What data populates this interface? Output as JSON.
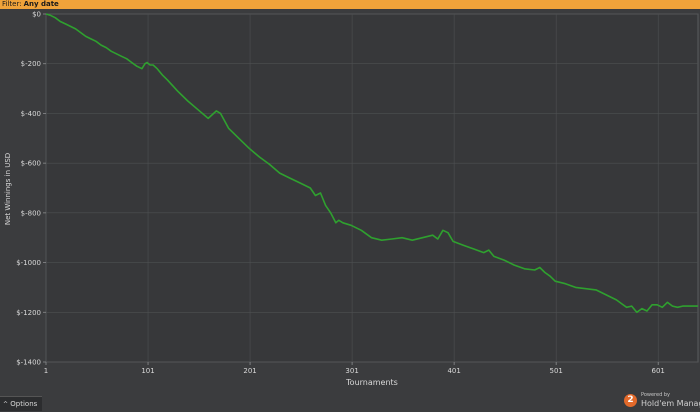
{
  "filter": {
    "label": "Filter:",
    "value": "Any date"
  },
  "footer": {
    "options_label": "Options",
    "powered_by": "Powered by",
    "brand": "Hold'em Manager",
    "badge": "2"
  },
  "colors": {
    "filter_bar": "#f0a33a",
    "background": "#3b3c3e",
    "line": "#2fa02f",
    "grid": "#4e5052",
    "axis": "#d8d8d8"
  },
  "chart_data": {
    "type": "line",
    "xlabel": "Tournaments",
    "ylabel": "Net Winnings in USD",
    "xlim": [
      1,
      640
    ],
    "ylim": [
      -1400,
      0
    ],
    "x_ticks": [
      1,
      101,
      201,
      301,
      401,
      501,
      601
    ],
    "x_tick_labels": [
      "1",
      "101",
      "201",
      "301",
      "401",
      "501",
      "601"
    ],
    "y_ticks": [
      0,
      -200,
      -400,
      -600,
      -800,
      -1000,
      -1200,
      -1400
    ],
    "y_tick_labels": [
      "$0",
      "$-200",
      "$-400",
      "$-600",
      "$-800",
      "$-1000",
      "$-1200",
      "$-1400"
    ],
    "grid": true,
    "series": [
      {
        "x": [
          1,
          5,
          10,
          15,
          20,
          25,
          30,
          35,
          40,
          45,
          50,
          55,
          60,
          65,
          70,
          75,
          80,
          85,
          90,
          95,
          98,
          100,
          103,
          106,
          110,
          115,
          120,
          130,
          140,
          150,
          160,
          168,
          172,
          176,
          180,
          190,
          200,
          210,
          220,
          230,
          240,
          250,
          260,
          265,
          270,
          275,
          280,
          285,
          288,
          292,
          300,
          310,
          320,
          330,
          340,
          350,
          360,
          370,
          380,
          385,
          390,
          395,
          400,
          410,
          420,
          430,
          435,
          440,
          450,
          460,
          470,
          480,
          485,
          490,
          495,
          500,
          510,
          520,
          530,
          540,
          550,
          560,
          565,
          570,
          575,
          580,
          585,
          590,
          595,
          600,
          605,
          610,
          615,
          620,
          625,
          630,
          640
        ],
        "values": [
          0,
          -5,
          -15,
          -30,
          -40,
          -50,
          -60,
          -75,
          -90,
          -100,
          -110,
          -125,
          -135,
          -150,
          -160,
          -170,
          -180,
          -195,
          -210,
          -220,
          -200,
          -195,
          -205,
          -205,
          -220,
          -245,
          -265,
          -310,
          -350,
          -385,
          -420,
          -390,
          -400,
          -430,
          -460,
          -500,
          -540,
          -575,
          -605,
          -640,
          -660,
          -680,
          -700,
          -730,
          -720,
          -770,
          -800,
          -840,
          -830,
          -840,
          -850,
          -870,
          -900,
          -910,
          -905,
          -900,
          -910,
          -900,
          -890,
          -905,
          -870,
          -880,
          -915,
          -930,
          -945,
          -960,
          -950,
          -975,
          -990,
          -1010,
          -1025,
          -1030,
          -1020,
          -1040,
          -1055,
          -1075,
          -1085,
          -1100,
          -1105,
          -1110,
          -1130,
          -1150,
          -1165,
          -1180,
          -1175,
          -1200,
          -1185,
          -1195,
          -1170,
          -1170,
          -1180,
          -1160,
          -1175,
          -1180,
          -1175,
          -1175,
          -1175
        ]
      }
    ]
  }
}
